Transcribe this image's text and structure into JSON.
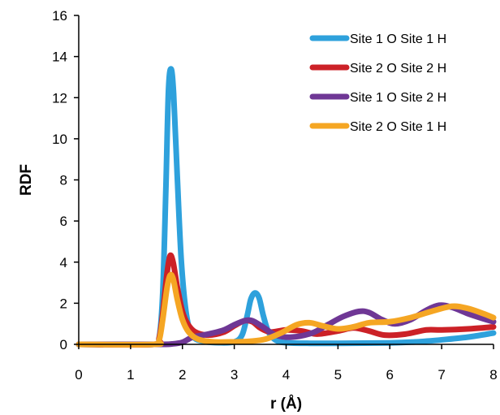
{
  "chart_data": {
    "type": "line",
    "title": "",
    "xlabel": "r (Å)",
    "ylabel": "RDF",
    "xlim": [
      0,
      8
    ],
    "ylim": [
      0,
      16
    ],
    "xticks": [
      0,
      1,
      2,
      3,
      4,
      5,
      6,
      7,
      8
    ],
    "yticks": [
      0,
      2,
      4,
      6,
      8,
      10,
      12,
      14,
      16
    ],
    "grid": false,
    "legend_position": "top-right",
    "series": [
      {
        "name": "Site 1 O Site 1 H",
        "color": "#2EA1DC",
        "points": [
          [
            0,
            0
          ],
          [
            1.45,
            0
          ],
          [
            1.55,
            0.3
          ],
          [
            1.62,
            2.5
          ],
          [
            1.68,
            7.5
          ],
          [
            1.73,
            12.3
          ],
          [
            1.78,
            13.4
          ],
          [
            1.83,
            12.2
          ],
          [
            1.9,
            8.2
          ],
          [
            1.98,
            4.0
          ],
          [
            2.08,
            1.4
          ],
          [
            2.2,
            0.4
          ],
          [
            2.4,
            0.15
          ],
          [
            2.7,
            0.08
          ],
          [
            3.0,
            0.12
          ],
          [
            3.15,
            0.45
          ],
          [
            3.25,
            1.4
          ],
          [
            3.32,
            2.2
          ],
          [
            3.4,
            2.5
          ],
          [
            3.48,
            2.25
          ],
          [
            3.56,
            1.4
          ],
          [
            3.66,
            0.6
          ],
          [
            3.8,
            0.2
          ],
          [
            4.0,
            0.08
          ],
          [
            4.5,
            0.05
          ],
          [
            5.0,
            0.05
          ],
          [
            6.0,
            0.07
          ],
          [
            6.5,
            0.12
          ],
          [
            7.0,
            0.22
          ],
          [
            7.5,
            0.35
          ],
          [
            8.0,
            0.55
          ]
        ]
      },
      {
        "name": "Site 2 O Site 2 H",
        "color": "#CC2127",
        "points": [
          [
            0,
            0
          ],
          [
            1.45,
            0
          ],
          [
            1.55,
            0.3
          ],
          [
            1.62,
            1.5
          ],
          [
            1.7,
            3.4
          ],
          [
            1.76,
            4.3
          ],
          [
            1.82,
            4.0
          ],
          [
            1.9,
            2.8
          ],
          [
            2.0,
            1.6
          ],
          [
            2.1,
            1.0
          ],
          [
            2.25,
            0.6
          ],
          [
            2.5,
            0.45
          ],
          [
            2.8,
            0.6
          ],
          [
            3.0,
            0.9
          ],
          [
            3.2,
            1.15
          ],
          [
            3.35,
            1.1
          ],
          [
            3.5,
            0.8
          ],
          [
            3.7,
            0.6
          ],
          [
            4.0,
            0.7
          ],
          [
            4.3,
            0.65
          ],
          [
            4.6,
            0.5
          ],
          [
            5.0,
            0.65
          ],
          [
            5.3,
            0.8
          ],
          [
            5.6,
            0.65
          ],
          [
            5.9,
            0.45
          ],
          [
            6.3,
            0.5
          ],
          [
            6.7,
            0.7
          ],
          [
            7.0,
            0.7
          ],
          [
            7.5,
            0.75
          ],
          [
            8.0,
            0.85
          ]
        ]
      },
      {
        "name": "Site 1 O Site 2 H",
        "color": "#6F3795",
        "points": [
          [
            0,
            0
          ],
          [
            1.5,
            0
          ],
          [
            1.8,
            0.02
          ],
          [
            2.0,
            0.1
          ],
          [
            2.2,
            0.35
          ],
          [
            2.5,
            0.5
          ],
          [
            2.8,
            0.7
          ],
          [
            3.0,
            0.95
          ],
          [
            3.2,
            1.15
          ],
          [
            3.35,
            1.15
          ],
          [
            3.55,
            0.85
          ],
          [
            3.8,
            0.45
          ],
          [
            4.1,
            0.35
          ],
          [
            4.5,
            0.55
          ],
          [
            4.8,
            0.95
          ],
          [
            5.1,
            1.35
          ],
          [
            5.4,
            1.6
          ],
          [
            5.6,
            1.55
          ],
          [
            5.85,
            1.2
          ],
          [
            6.1,
            1.0
          ],
          [
            6.4,
            1.2
          ],
          [
            6.7,
            1.65
          ],
          [
            6.95,
            1.9
          ],
          [
            7.2,
            1.8
          ],
          [
            7.5,
            1.5
          ],
          [
            7.8,
            1.25
          ],
          [
            8.0,
            1.1
          ]
        ]
      },
      {
        "name": "Site 2 O Site 1 H",
        "color": "#F5A623",
        "points": [
          [
            0,
            0
          ],
          [
            1.45,
            0
          ],
          [
            1.55,
            0.2
          ],
          [
            1.62,
            1.2
          ],
          [
            1.7,
            2.7
          ],
          [
            1.76,
            3.35
          ],
          [
            1.82,
            3.2
          ],
          [
            1.9,
            2.2
          ],
          [
            2.0,
            1.2
          ],
          [
            2.12,
            0.6
          ],
          [
            2.3,
            0.25
          ],
          [
            2.6,
            0.12
          ],
          [
            3.0,
            0.12
          ],
          [
            3.3,
            0.15
          ],
          [
            3.6,
            0.25
          ],
          [
            3.9,
            0.55
          ],
          [
            4.2,
            0.95
          ],
          [
            4.45,
            1.05
          ],
          [
            4.7,
            0.9
          ],
          [
            5.0,
            0.75
          ],
          [
            5.3,
            0.85
          ],
          [
            5.6,
            1.05
          ],
          [
            6.0,
            1.1
          ],
          [
            6.4,
            1.3
          ],
          [
            6.8,
            1.6
          ],
          [
            7.2,
            1.85
          ],
          [
            7.5,
            1.75
          ],
          [
            7.8,
            1.5
          ],
          [
            8.0,
            1.3
          ]
        ]
      }
    ]
  }
}
